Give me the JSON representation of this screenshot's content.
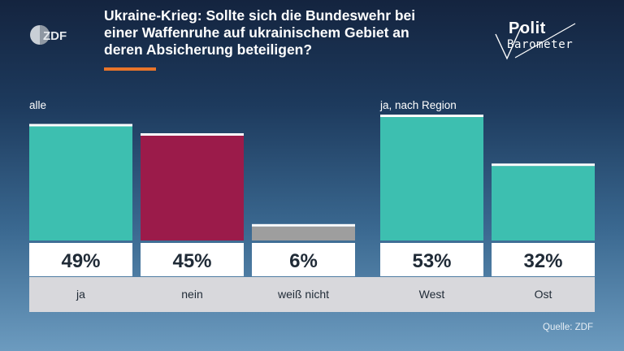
{
  "header": {
    "title": "Ukraine-Krieg: Sollte sich die Bundeswehr bei\neiner Waffenruhe auf ukrainischem Gebiet an\nderen Absicherung beteiligen?",
    "accent_color": "#e8742a"
  },
  "logos": {
    "zdf": "ZDF",
    "politbarometer_line1": "Polit",
    "politbarometer_line2": "Barometer"
  },
  "chart_data": {
    "type": "bar",
    "ylim": [
      0,
      60
    ],
    "groups": [
      {
        "label": "alle",
        "categories": [
          "ja",
          "nein",
          "weiß nicht"
        ],
        "values": [
          49,
          45,
          6
        ],
        "value_labels": [
          "49%",
          "45%",
          "6%"
        ]
      },
      {
        "label": "ja, nach Region",
        "categories": [
          "West",
          "Ost"
        ],
        "values": [
          53,
          32
        ],
        "value_labels": [
          "53%",
          "32%"
        ]
      }
    ],
    "colors": {
      "ja": "#3dbfb0",
      "nein": "#9b1b4a",
      "weiß nicht": "#9e9e9e",
      "West": "#3dbfb0",
      "Ost": "#3dbfb0"
    },
    "grid": false
  },
  "footer": {
    "source": "Quelle: ZDF"
  }
}
